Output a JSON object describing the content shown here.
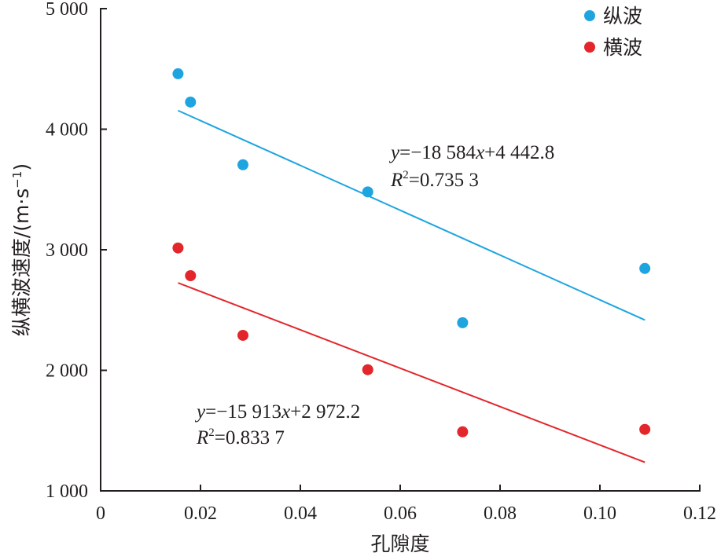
{
  "chart_data": {
    "type": "scatter",
    "xlabel": "孔隙度",
    "ylabel": "纵横波速度/(m·s",
    "ylabel_sup": "−1",
    "ylabel_close": ")",
    "xlim": [
      0,
      0.12
    ],
    "ylim": [
      1000,
      5000
    ],
    "x_ticks": [
      0,
      0.02,
      0.04,
      0.06,
      0.08,
      0.1,
      0.12
    ],
    "x_tick_labels": [
      "0",
      "0.02",
      "0.04",
      "0.06",
      "0.08",
      "0.10",
      "0.12"
    ],
    "y_ticks": [
      1000,
      2000,
      3000,
      4000,
      5000
    ],
    "y_tick_labels": [
      "1 000",
      "2 000",
      "3 000",
      "4 000",
      "5 000"
    ],
    "grid": false,
    "legend_position": "top-right",
    "series": [
      {
        "name": "纵波",
        "color": "#1ea5e0",
        "points": [
          {
            "x": 0.0155,
            "y": 4460
          },
          {
            "x": 0.018,
            "y": 4225
          },
          {
            "x": 0.0285,
            "y": 3705
          },
          {
            "x": 0.0535,
            "y": 3480
          },
          {
            "x": 0.0725,
            "y": 2395
          },
          {
            "x": 0.109,
            "y": 2845
          }
        ],
        "fit": {
          "x_range": [
            0.0155,
            0.109
          ],
          "slope": -18584,
          "intercept": 4442.8,
          "equation": {
            "y": "y",
            "eq": "=−18 584",
            "x": "x",
            "rest": "+4 442.8"
          },
          "r2": {
            "R": "R",
            "sup": "2",
            "val": "=0.735 3"
          }
        }
      },
      {
        "name": "横波",
        "color": "#e3262b",
        "points": [
          {
            "x": 0.0155,
            "y": 3015
          },
          {
            "x": 0.018,
            "y": 2785
          },
          {
            "x": 0.0285,
            "y": 2290
          },
          {
            "x": 0.0535,
            "y": 2005
          },
          {
            "x": 0.0725,
            "y": 1490
          },
          {
            "x": 0.109,
            "y": 1510
          }
        ],
        "fit": {
          "x_range": [
            0.0155,
            0.109
          ],
          "slope": -15913,
          "intercept": 2972.2,
          "equation": {
            "y": "y",
            "eq": "=−15 913",
            "x": "x",
            "rest": "+2 972.2"
          },
          "r2": {
            "R": "R",
            "sup": "2",
            "val": "=0.833 7"
          }
        }
      }
    ]
  }
}
